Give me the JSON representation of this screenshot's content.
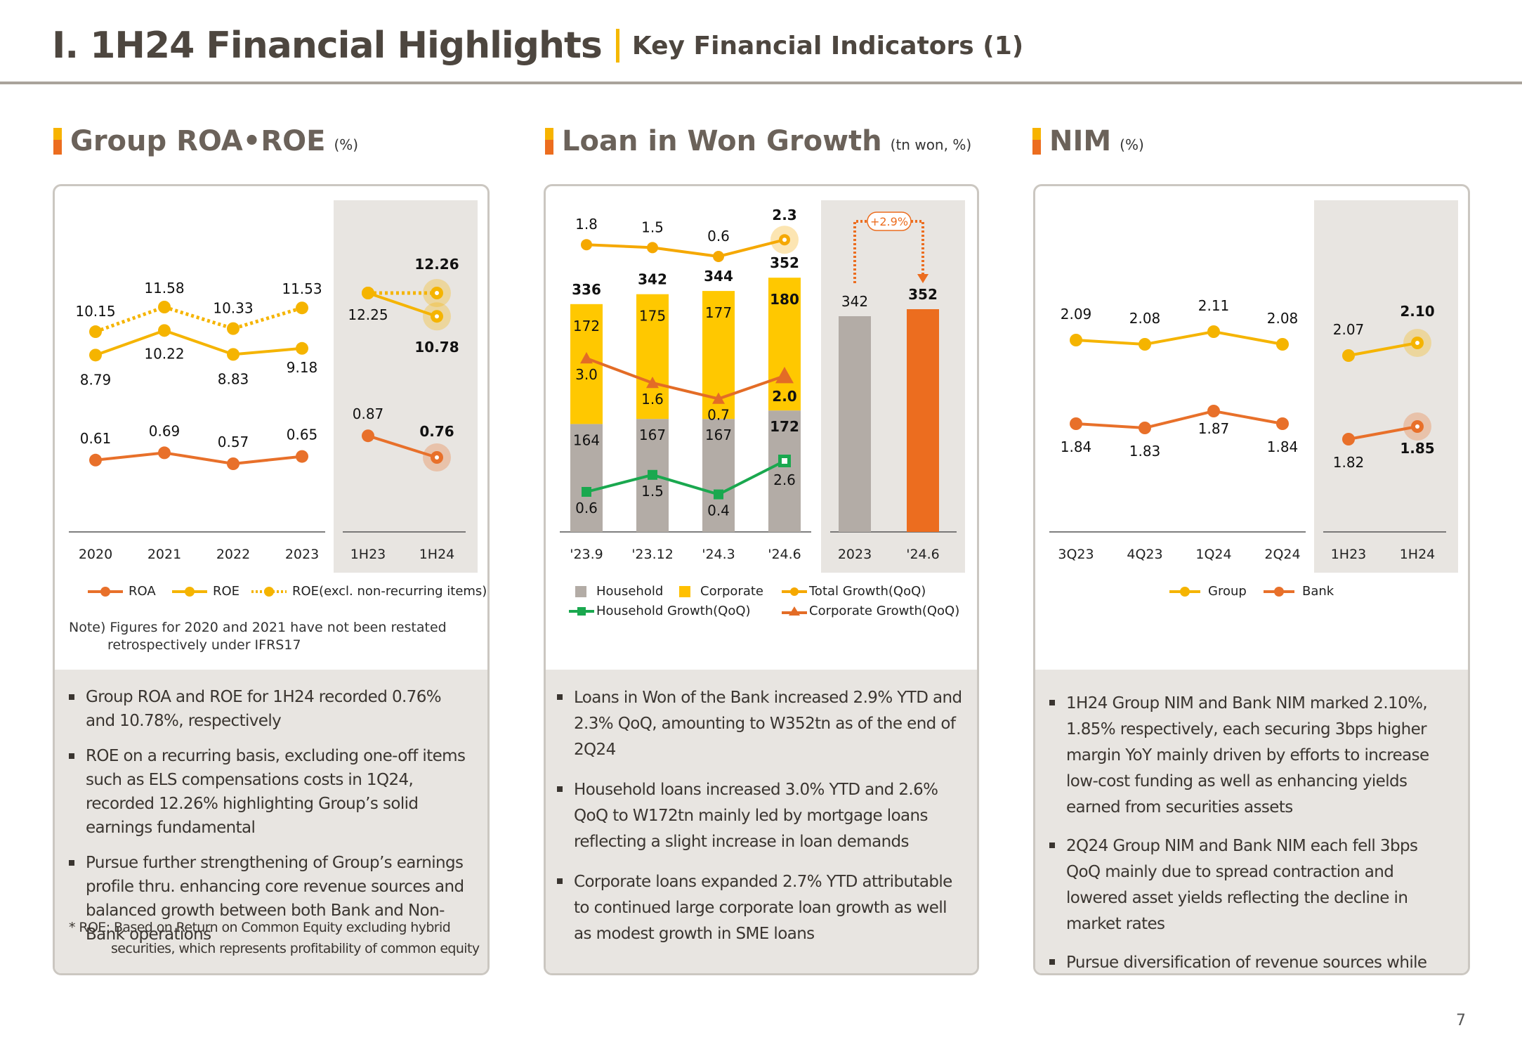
{
  "header": {
    "title": "I. 1H24 Financial Highlights",
    "subtitle": "Key Financial Indicators (1)"
  },
  "page_number": "7",
  "colors": {
    "roa": "#e8702a",
    "roe": "#f5b400",
    "household": "#b3aca6",
    "corporate": "#ffc800",
    "household_growth": "#1aa84f",
    "corporate_growth": "#e36c26",
    "total_growth": "#f5a800",
    "bank": "#e8702a",
    "group": "#f5b400",
    "highlight_bar": "#ec6d1f",
    "shade": "#e8e5e1"
  },
  "sections": {
    "roa_roe": {
      "heading": "Group ROA•ROE",
      "unit": "(%)",
      "legend": [
        "ROA",
        "ROE",
        "ROE(excl. non-recurring items)"
      ],
      "note_line1": "Note) Figures for 2020 and 2021 have not been restated",
      "note_line2": "retrospectively under IFRS17",
      "bullets": [
        "Group ROA and ROE for 1H24 recorded 0.76% and 10.78%, respectively",
        "ROE on a recurring basis, excluding one-off items such as ELS compensations costs in 1Q24, recorded 12.26% highlighting Group’s solid earnings fundamental",
        "Pursue further strengthening of Group’s earnings profile thru. enhancing core revenue sources and balanced growth between both Bank and Non-Bank operations"
      ],
      "footnote_line1": "* ROE: Based on Return on Common Equity excluding hybrid",
      "footnote_line2": "securities, which represents profitability of common equity"
    },
    "loan": {
      "heading": "Loan in Won Growth",
      "unit": "(tn won, %)",
      "legend": [
        "Household",
        "Corporate",
        "Total Growth(QoQ)",
        "Household Growth(QoQ)",
        "Corporate Growth(QoQ)"
      ],
      "bullets": [
        "Loans in Won of the Bank increased 2.9% YTD and 2.3% QoQ, amounting to W352tn as of the end of 2Q24",
        "Household loans increased 3.0% YTD and 2.6% QoQ to W172tn mainly led by mortgage loans reflecting a slight increase in loan demands",
        "Corporate loans expanded 2.7% YTD attributable to continued large corporate loan growth as well as modest growth in SME loans"
      ]
    },
    "nim": {
      "heading": "NIM",
      "unit": "(%)",
      "legend": [
        "Group",
        "Bank"
      ],
      "bullets": [
        "1H24 Group NIM and Bank NIM marked 2.10%, 1.85% respectively, each securing 3bps higher margin YoY mainly driven by efforts to increase low-cost funding as well as enhancing yields earned from securities assets",
        "2Q24 Group NIM and Bank NIM each fell 3bps QoQ mainly due to spread contraction and lowered asset yields reflecting the decline in market rates",
        "Pursue diversification of revenue sources while continuing efforts to secure proper margins"
      ]
    }
  },
  "chart_data": [
    {
      "id": "roa_roe",
      "type": "line",
      "title": "Group ROA•ROE (%)",
      "groups": [
        {
          "categories": [
            "2020",
            "2021",
            "2022",
            "2023"
          ],
          "shaded": false
        },
        {
          "categories": [
            "1H23",
            "1H24"
          ],
          "shaded": true
        }
      ],
      "series": [
        {
          "name": "ROE(excl. non-recurring items)",
          "style": "dotted",
          "values": [
            10.15,
            11.58,
            10.33,
            11.53
          ],
          "values_half": [
            12.25,
            12.26
          ]
        },
        {
          "name": "ROE",
          "style": "solid",
          "values": [
            8.79,
            10.22,
            8.83,
            9.18
          ],
          "values_half": [
            12.25,
            10.78
          ]
        },
        {
          "name": "ROA",
          "style": "solid",
          "values": [
            0.61,
            0.69,
            0.57,
            0.65
          ],
          "values_half": [
            0.87,
            0.76
          ]
        }
      ],
      "highlight": "1H24",
      "grid": false,
      "legend_position": "bottom"
    },
    {
      "id": "loan",
      "type": "bar",
      "title": "Loan in Won Growth (tn won, %)",
      "categories": [
        "'23.9",
        "'23.12",
        "'24.3",
        "'24.6"
      ],
      "stacked_series": [
        {
          "name": "Household",
          "values": [
            164,
            167,
            167,
            172
          ]
        },
        {
          "name": "Corporate",
          "values": [
            172,
            175,
            177,
            180
          ]
        }
      ],
      "totals": [
        336,
        342,
        344,
        352
      ],
      "line_series": [
        {
          "name": "Total Growth(QoQ)",
          "values": [
            1.8,
            1.5,
            0.6,
            2.3
          ]
        },
        {
          "name": "Household Growth(QoQ)",
          "values": [
            0.6,
            1.5,
            0.4,
            2.6
          ]
        },
        {
          "name": "Corporate Growth(QoQ)",
          "values": [
            3.0,
            1.6,
            0.7,
            2.0
          ]
        }
      ],
      "ytd": {
        "categories": [
          "2023",
          "'24.6"
        ],
        "values": [
          342,
          352
        ],
        "change_label": "+2.9%"
      },
      "highlight": "'24.6",
      "grid": false,
      "legend_position": "bottom"
    },
    {
      "id": "nim",
      "type": "line",
      "title": "NIM (%)",
      "groups": [
        {
          "categories": [
            "3Q23",
            "4Q23",
            "1Q24",
            "2Q24"
          ],
          "shaded": false
        },
        {
          "categories": [
            "1H23",
            "1H24"
          ],
          "shaded": true
        }
      ],
      "series": [
        {
          "name": "Group",
          "values": [
            2.09,
            2.08,
            2.11,
            2.08
          ],
          "values_half": [
            2.07,
            2.1
          ]
        },
        {
          "name": "Bank",
          "values": [
            1.84,
            1.83,
            1.87,
            1.84
          ],
          "values_half": [
            1.82,
            1.85
          ]
        }
      ],
      "highlight": "1H24",
      "grid": false,
      "legend_position": "bottom"
    }
  ]
}
